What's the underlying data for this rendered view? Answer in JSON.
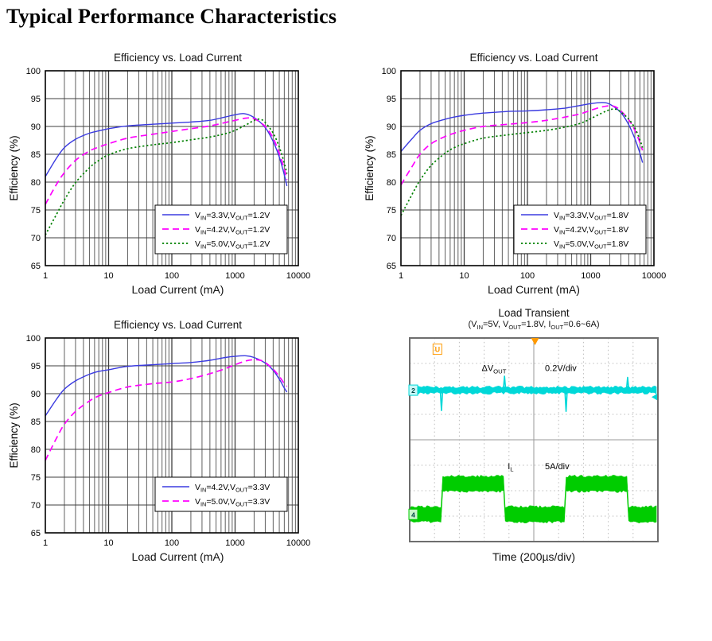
{
  "page": {
    "title": "Typical Performance Characteristics"
  },
  "colors": {
    "blue": "#3b3be0",
    "magenta": "#ff00ff",
    "green": "#008000",
    "grid_minor": "#606060",
    "grid_major": "#3f3f3f",
    "frame": "#000000",
    "scope_cyan": "#00d8d8",
    "scope_green": "#00cc00",
    "scope_orange": "#ff9900",
    "scope_grid": "#bbbbbb",
    "scope_center": "#9a9a9a",
    "scope_frame": "#6e6e6e"
  },
  "chart_data": [
    {
      "type": "line",
      "title": "Efficiency vs. Load Current",
      "xlabel": "Load Current (mA)",
      "ylabel": "Efficiency (%)",
      "xscale": "log",
      "xlim": [
        1,
        10000
      ],
      "ylim": [
        65,
        100
      ],
      "ytick_step": 5,
      "xticks": [
        1,
        10,
        100,
        1000,
        10000
      ],
      "grid": "on",
      "legend_pos": "lower-right",
      "legend_xy": [
        186,
        176
      ],
      "series": [
        {
          "name": "V_{IN}=3.3V,V_{OUT}=1.2V",
          "color": "blue",
          "style": "solid",
          "points": [
            [
              1,
              81
            ],
            [
              1.5,
              84.3
            ],
            [
              2,
              86.2
            ],
            [
              3,
              87.7
            ],
            [
              5,
              88.8
            ],
            [
              7,
              89.2
            ],
            [
              10,
              89.6
            ],
            [
              20,
              90.1
            ],
            [
              50,
              90.4
            ],
            [
              100,
              90.6
            ],
            [
              200,
              90.8
            ],
            [
              400,
              91.1
            ],
            [
              700,
              91.7
            ],
            [
              1000,
              92.1
            ],
            [
              1400,
              92.3
            ],
            [
              2000,
              91.6
            ],
            [
              3000,
              89.8
            ],
            [
              4000,
              87.3
            ],
            [
              5000,
              84.5
            ],
            [
              6000,
              81.3
            ],
            [
              6600,
              79.3
            ]
          ]
        },
        {
          "name": "V_{IN}=4.2V,V_{OUT}=1.2V",
          "color": "magenta",
          "style": "dashed",
          "points": [
            [
              1,
              76
            ],
            [
              1.5,
              79.6
            ],
            [
              2,
              81.7
            ],
            [
              3,
              83.9
            ],
            [
              5,
              85.6
            ],
            [
              7,
              86.3
            ],
            [
              10,
              86.9
            ],
            [
              20,
              87.9
            ],
            [
              50,
              88.6
            ],
            [
              100,
              89.1
            ],
            [
              200,
              89.6
            ],
            [
              400,
              90.1
            ],
            [
              700,
              90.7
            ],
            [
              1000,
              91.1
            ],
            [
              1500,
              91.5
            ],
            [
              2000,
              91.4
            ],
            [
              3000,
              90.0
            ],
            [
              4000,
              87.9
            ],
            [
              5000,
              85.2
            ],
            [
              6000,
              82.3
            ],
            [
              6600,
              80.4
            ]
          ]
        },
        {
          "name": "V_{IN}=5.0V,V_{OUT}=1.2V",
          "color": "green",
          "style": "dotted",
          "points": [
            [
              1,
              70.5
            ],
            [
              1.5,
              74.2
            ],
            [
              2,
              76.8
            ],
            [
              3,
              79.9
            ],
            [
              5,
              82.6
            ],
            [
              7,
              83.9
            ],
            [
              10,
              84.9
            ],
            [
              20,
              86.0
            ],
            [
              50,
              86.7
            ],
            [
              100,
              87.1
            ],
            [
              200,
              87.6
            ],
            [
              400,
              88.1
            ],
            [
              700,
              88.7
            ],
            [
              1000,
              89.3
            ],
            [
              1500,
              90.3
            ],
            [
              2000,
              91.1
            ],
            [
              2500,
              91.3
            ],
            [
              3000,
              90.7
            ],
            [
              4000,
              88.8
            ],
            [
              5000,
              86.3
            ],
            [
              6000,
              83.4
            ],
            [
              6600,
              81.5
            ]
          ]
        }
      ]
    },
    {
      "type": "line",
      "title": "Efficiency vs. Load Current",
      "xlabel": "Load Current (mA)",
      "ylabel": "Efficiency (%)",
      "xscale": "log",
      "xlim": [
        1,
        10000
      ],
      "ylim": [
        65,
        100
      ],
      "ytick_step": 5,
      "xticks": [
        1,
        10,
        100,
        1000,
        10000
      ],
      "grid": "on",
      "legend_pos": "lower-right",
      "legend_xy": [
        190,
        176
      ],
      "series": [
        {
          "name": "V_{IN}=3.3V,V_{OUT}=1.8V",
          "color": "blue",
          "style": "solid",
          "points": [
            [
              1,
              85.5
            ],
            [
              1.5,
              87.8
            ],
            [
              2,
              89.3
            ],
            [
              3,
              90.5
            ],
            [
              5,
              91.3
            ],
            [
              7,
              91.7
            ],
            [
              10,
              92.0
            ],
            [
              20,
              92.4
            ],
            [
              50,
              92.7
            ],
            [
              100,
              92.8
            ],
            [
              200,
              93.0
            ],
            [
              400,
              93.3
            ],
            [
              700,
              93.8
            ],
            [
              1000,
              94.1
            ],
            [
              1500,
              94.3
            ],
            [
              2000,
              94.0
            ],
            [
              3000,
              92.5
            ],
            [
              4000,
              90.3
            ],
            [
              5000,
              87.8
            ],
            [
              6000,
              85.2
            ],
            [
              6600,
              83.5
            ]
          ]
        },
        {
          "name": "V_{IN}=4.2V,V_{OUT}=1.8V",
          "color": "magenta",
          "style": "dashed",
          "points": [
            [
              1,
              79.5
            ],
            [
              1.5,
              82.8
            ],
            [
              2,
              85.0
            ],
            [
              3,
              86.9
            ],
            [
              5,
              88.2
            ],
            [
              7,
              88.8
            ],
            [
              10,
              89.3
            ],
            [
              20,
              90.0
            ],
            [
              50,
              90.4
            ],
            [
              100,
              90.7
            ],
            [
              200,
              91.1
            ],
            [
              400,
              91.7
            ],
            [
              700,
              92.3
            ],
            [
              1000,
              92.9
            ],
            [
              1500,
              93.5
            ],
            [
              2000,
              93.7
            ],
            [
              2500,
              93.5
            ],
            [
              3000,
              92.8
            ],
            [
              4000,
              91.2
            ],
            [
              5000,
              89.3
            ],
            [
              6000,
              87.1
            ],
            [
              6600,
              85.7
            ]
          ]
        },
        {
          "name": "V_{IN}=5.0V,V_{OUT}=1.8V",
          "color": "green",
          "style": "dotted",
          "points": [
            [
              1,
              74
            ],
            [
              1.5,
              77.8
            ],
            [
              2,
              80.3
            ],
            [
              3,
              83.0
            ],
            [
              5,
              85.2
            ],
            [
              7,
              86.2
            ],
            [
              10,
              86.9
            ],
            [
              20,
              87.9
            ],
            [
              50,
              88.5
            ],
            [
              100,
              88.9
            ],
            [
              200,
              89.3
            ],
            [
              400,
              89.9
            ],
            [
              700,
              90.6
            ],
            [
              1000,
              91.4
            ],
            [
              1500,
              92.4
            ],
            [
              2000,
              93.0
            ],
            [
              2500,
              93.1
            ],
            [
              3000,
              92.6
            ],
            [
              4000,
              91.3
            ],
            [
              5000,
              89.7
            ],
            [
              6000,
              87.6
            ],
            [
              6600,
              86.2
            ]
          ]
        }
      ]
    },
    {
      "type": "line",
      "title": "Efficiency vs. Load Current",
      "xlabel": "Load Current (mA)",
      "ylabel": "Efficiency (%)",
      "xscale": "log",
      "xlim": [
        1,
        10000
      ],
      "ylim": [
        65,
        100
      ],
      "ytick_step": 5,
      "xticks": [
        1,
        10,
        100,
        1000,
        10000
      ],
      "grid": "on",
      "legend_pos": "lower-right",
      "legend_xy": [
        186,
        182
      ],
      "series": [
        {
          "name": "V_{IN}=4.2V,V_{OUT}=3.3V",
          "color": "blue",
          "style": "solid",
          "points": [
            [
              1,
              86
            ],
            [
              1.5,
              89
            ],
            [
              2,
              90.8
            ],
            [
              3,
              92.3
            ],
            [
              5,
              93.5
            ],
            [
              7,
              94.0
            ],
            [
              10,
              94.3
            ],
            [
              20,
              94.9
            ],
            [
              50,
              95.2
            ],
            [
              100,
              95.4
            ],
            [
              200,
              95.6
            ],
            [
              400,
              96.0
            ],
            [
              700,
              96.5
            ],
            [
              1000,
              96.7
            ],
            [
              1500,
              96.8
            ],
            [
              2000,
              96.5
            ],
            [
              3000,
              95.5
            ],
            [
              4000,
              94.2
            ],
            [
              5000,
              92.6
            ],
            [
              6000,
              91.0
            ],
            [
              6600,
              90.3
            ]
          ]
        },
        {
          "name": "V_{IN}=5.0V,V_{OUT}=3.3V",
          "color": "magenta",
          "style": "dashed",
          "points": [
            [
              1,
              78
            ],
            [
              1.5,
              82
            ],
            [
              2,
              84.5
            ],
            [
              3,
              86.8
            ],
            [
              5,
              88.7
            ],
            [
              7,
              89.6
            ],
            [
              10,
              90.2
            ],
            [
              20,
              91.2
            ],
            [
              50,
              91.8
            ],
            [
              100,
              92.1
            ],
            [
              200,
              92.7
            ],
            [
              400,
              93.6
            ],
            [
              700,
              94.5
            ],
            [
              1000,
              95.2
            ],
            [
              1500,
              95.9
            ],
            [
              2000,
              96.1
            ],
            [
              2500,
              96.0
            ],
            [
              3000,
              95.6
            ],
            [
              4000,
              94.4
            ],
            [
              5000,
              93.1
            ],
            [
              6000,
              91.8
            ],
            [
              6600,
              91.3
            ]
          ]
        }
      ]
    },
    {
      "type": "oscilloscope",
      "title": "Load Transient",
      "subtitle": "(V_{IN}=5V, V_{OUT}=1.8V, I_{OUT}=0.6~6A)",
      "xlabel": "Time (200µs/div)",
      "grid_divs": {
        "x": 10,
        "y": 8
      },
      "traces": [
        {
          "name": "ΔV_{OUT}",
          "scale": "0.2V/div",
          "color": "scope_cyan",
          "kind": "noisy-flat",
          "center_div": 2.05,
          "thickness_div": 0.24,
          "spikes": [
            {
              "x_div": 1.28,
              "to_div": 2.85
            },
            {
              "x_div": 3.82,
              "to_div": 1.5
            },
            {
              "x_div": 6.3,
              "to_div": 2.88
            },
            {
              "x_div": 8.78,
              "to_div": 1.55
            }
          ]
        },
        {
          "name": "I_{L}",
          "scale": "5A/div",
          "color": "scope_green",
          "kind": "square",
          "low_div": 6.93,
          "high_div": 5.73,
          "thickness_div": 0.6,
          "start": "low",
          "edges_div": [
            1.27,
            3.8,
            6.3,
            8.77
          ]
        }
      ],
      "labels": [
        {
          "text": "ΔV_{OUT}",
          "x_div": 2.9,
          "y_div": 1.3
        },
        {
          "text": "0.2V/div",
          "x_div": 5.45,
          "y_div": 1.3
        },
        {
          "text": "I_{L}",
          "x_div": 3.95,
          "y_div": 5.15
        },
        {
          "text": "5A/div",
          "x_div": 5.45,
          "y_div": 5.15
        }
      ],
      "markers": {
        "trigger_x_div": 5.05,
        "u_marker": {
          "label": "U",
          "x_div": 1.1,
          "y_div": 0.55
        },
        "ch2": {
          "label": "2",
          "y_div": 2.05
        },
        "ch4": {
          "label": "4",
          "y_div": 6.93
        },
        "right_arrow_y_div": 2.32
      }
    }
  ]
}
